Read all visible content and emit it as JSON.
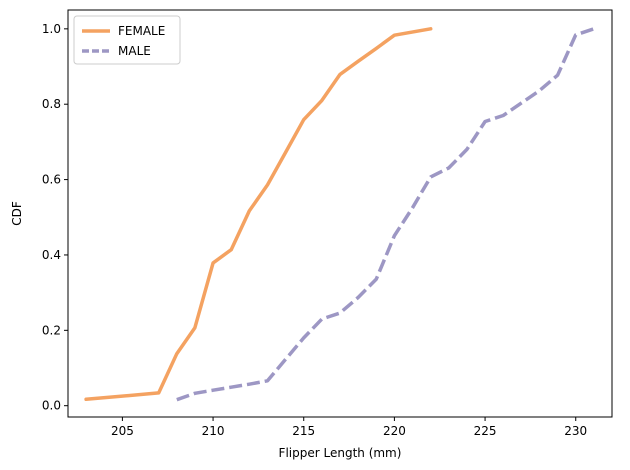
{
  "chart_data": {
    "type": "line",
    "title": "",
    "xlabel": "Flipper Length (mm)",
    "ylabel": "CDF",
    "xlim": [
      202,
      232
    ],
    "ylim": [
      -0.03,
      1.05
    ],
    "xticks": [
      205,
      210,
      215,
      220,
      225,
      230
    ],
    "yticks": [
      0.0,
      0.2,
      0.4,
      0.6,
      0.8,
      1.0
    ],
    "grid": false,
    "legend": "top-left",
    "series": [
      {
        "name": "FEMALE",
        "color": "#f4a261",
        "dash": "solid",
        "points": [
          [
            203,
            0.017
          ],
          [
            207,
            0.034
          ],
          [
            208,
            0.138
          ],
          [
            209,
            0.207
          ],
          [
            210,
            0.379
          ],
          [
            211,
            0.414
          ],
          [
            212,
            0.517
          ],
          [
            213,
            0.586
          ],
          [
            214,
            0.672
          ],
          [
            215,
            0.759
          ],
          [
            216,
            0.81
          ],
          [
            217,
            0.879
          ],
          [
            218,
            0.914
          ],
          [
            219,
            0.948
          ],
          [
            220,
            0.983
          ],
          [
            222,
            1.0
          ]
        ]
      },
      {
        "name": "MALE",
        "color": "#9d97c4",
        "dash": "dashed",
        "points": [
          [
            208,
            0.016
          ],
          [
            209,
            0.033
          ],
          [
            210,
            0.041
          ],
          [
            211,
            0.049
          ],
          [
            212,
            0.057
          ],
          [
            213,
            0.066
          ],
          [
            214,
            0.123
          ],
          [
            215,
            0.18
          ],
          [
            216,
            0.23
          ],
          [
            217,
            0.246
          ],
          [
            218,
            0.287
          ],
          [
            219,
            0.336
          ],
          [
            220,
            0.451
          ],
          [
            221,
            0.525
          ],
          [
            222,
            0.607
          ],
          [
            223,
            0.631
          ],
          [
            224,
            0.68
          ],
          [
            225,
            0.754
          ],
          [
            226,
            0.77
          ],
          [
            227,
            0.803
          ],
          [
            228,
            0.836
          ],
          [
            229,
            0.877
          ],
          [
            230,
            0.984
          ],
          [
            231,
            1.0
          ]
        ]
      }
    ]
  }
}
